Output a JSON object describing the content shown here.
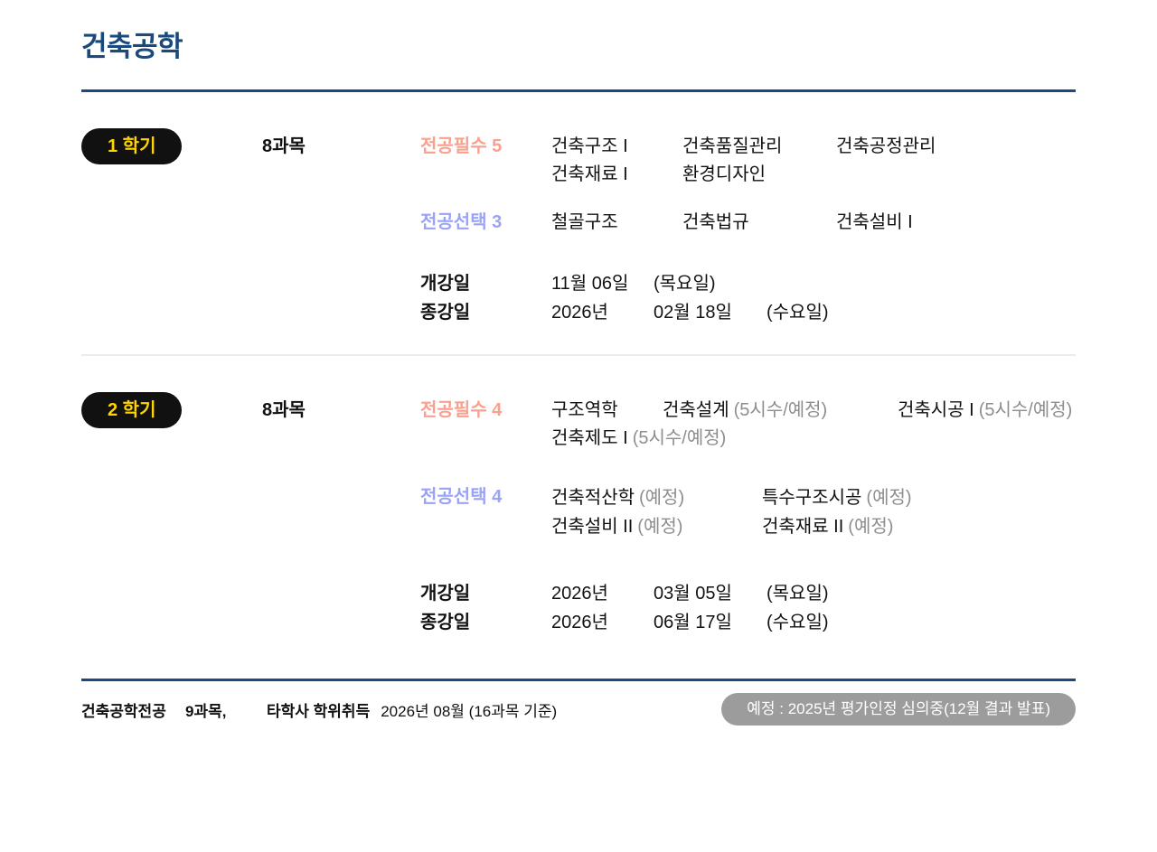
{
  "title": "건축공학",
  "colors": {
    "navy_accent": "#1a4a7c",
    "required_label": "#f9a08e",
    "elective_label": "#9aa3f6",
    "badge_bg": "#111111",
    "badge_text": "#ffd400",
    "note_gray": "#8e8e8e",
    "footer_pill_bg": "#9c9c9c"
  },
  "semesters": [
    {
      "badge": "1 학기",
      "count": "8과목",
      "required": {
        "label": "전공필수 5",
        "rows": [
          [
            {
              "name": "건축구조 I",
              "note": ""
            },
            {
              "name": "건축품질관리",
              "note": ""
            },
            {
              "name": "건축공정관리",
              "note": ""
            }
          ],
          [
            {
              "name": "건축재료 I",
              "note": ""
            },
            {
              "name": "환경디자인",
              "note": ""
            }
          ]
        ]
      },
      "elective": {
        "label": "전공선택 3",
        "rows": [
          [
            {
              "name": "철골구조",
              "note": ""
            },
            {
              "name": "건축법규",
              "note": ""
            },
            {
              "name": "건축설비 I",
              "note": ""
            }
          ]
        ]
      },
      "dates": [
        {
          "label": "개강일",
          "c1": "11월 06일",
          "c2": "(목요일)",
          "c3": ""
        },
        {
          "label": "종강일",
          "c1": "2026년",
          "c2": "02월 18일",
          "c3": "(수요일)"
        }
      ]
    },
    {
      "badge": "2 학기",
      "count": "8과목",
      "required": {
        "label": "전공필수 4",
        "rows": [
          [
            {
              "name": "구조역학",
              "note": ""
            },
            {
              "name": "건축설계",
              "note": "(5시수/예정)"
            },
            {
              "name": "건축시공 I",
              "note": "(5시수/예정)"
            }
          ],
          [
            {
              "name": "건축제도 I",
              "note": "(5시수/예정)"
            }
          ]
        ]
      },
      "elective": {
        "label": "전공선택 4",
        "rows": [
          [
            {
              "name": "건축적산학",
              "note": "(예정)"
            },
            {
              "name": "특수구조시공",
              "note": "(예정)"
            }
          ],
          [
            {
              "name": "건축설비 II",
              "note": "(예정)"
            },
            {
              "name": "건축재료 II",
              "note": "(예정)"
            }
          ]
        ]
      },
      "dates": [
        {
          "label": "개강일",
          "c1": "2026년",
          "c2": "03월 05일",
          "c3": "(목요일)"
        },
        {
          "label": "종강일",
          "c1": "2026년",
          "c2": "06월 17일",
          "c3": "(수요일)"
        }
      ]
    }
  ],
  "footer": {
    "major": "건축공학전공",
    "count": "9과목,",
    "degree_label": "타학사 학위취득",
    "degree_date": "2026년 08월 (16과목 기준)",
    "badge": "예정 : 2025년 평가인정 심의중(12월 결과 발표)"
  }
}
